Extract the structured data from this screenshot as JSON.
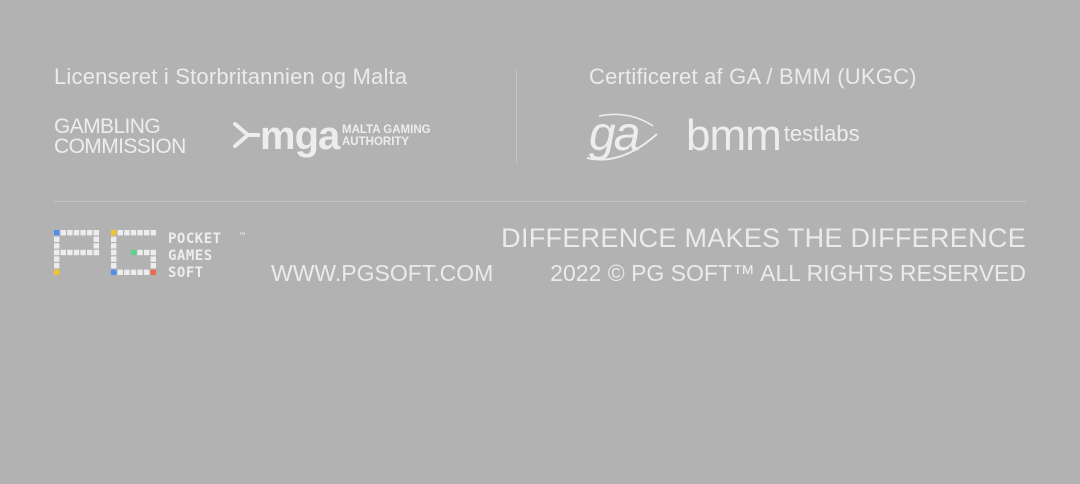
{
  "licensing": {
    "heading": "Licenseret i Storbritannien og Malta",
    "gambling_commission": {
      "line1": "GAMBLING",
      "line2": "COMMISSION"
    },
    "mga": {
      "word": "mga",
      "sub_line1": "MALTA GAMING",
      "sub_line2": "AUTHORITY"
    }
  },
  "certification": {
    "heading": "Certificeret af GA / BMM (UKGC)",
    "ga_logo_text": "ga",
    "bmm_word": "bmm",
    "testlabs_word": "testlabs"
  },
  "footer": {
    "pg_logo": {
      "line1": "POCKET",
      "line2": "GAMES",
      "line3": "SOFT",
      "trademark": "™"
    },
    "tagline": "DIFFERENCE MAKES THE DIFFERENCE",
    "website": "WWW.PGSOFT.COM",
    "copyright": "2022 © PG SOFT™ ALL RIGHTS RESERVED"
  },
  "colors": {
    "background": "#b2b2b2",
    "text": "#ebebeb",
    "divider": "#c4c4c4",
    "pg_accent_blue": "#4f8fe8",
    "pg_accent_pink": "#e35d9a",
    "pg_accent_yellow": "#f1c232",
    "pg_accent_red": "#e86a4f",
    "pg_accent_green": "#5fcf8f"
  },
  "icons": {
    "gambling_commission": "gambling-commission-logo",
    "mga": "mga-logo",
    "ga": "ga-logo",
    "bmm": "bmm-testlabs-logo",
    "pg": "pg-soft-logo"
  }
}
